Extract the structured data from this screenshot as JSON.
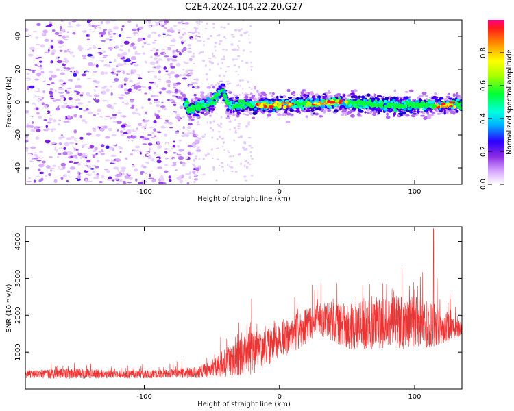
{
  "title": "C2E4.2024.104.22.20.G27",
  "chart_data": [
    {
      "type": "heatmap",
      "xlabel": "Height of straight line (km)",
      "ylabel": "Frequency (Hz)",
      "xlim": [
        -188,
        135
      ],
      "ylim": [
        -50,
        50
      ],
      "x_ticks": [
        -100,
        0,
        100
      ],
      "x_tick_labels": [
        "-100",
        "0",
        "100"
      ],
      "y_ticks": [
        -40,
        -20,
        0,
        20,
        40
      ],
      "y_tick_labels": [
        "-40",
        "-20",
        "0",
        "20",
        "40"
      ],
      "colorbar": {
        "label": "Normalized spectral amplitude",
        "range": [
          0,
          1
        ],
        "ticks": [
          0.0,
          0.2,
          0.4,
          0.6,
          0.8
        ],
        "tick_labels": [
          "0.0",
          "0.2",
          "0.4",
          "0.6",
          "0.8"
        ]
      },
      "description_points": {
        "noise_region_x": [
          -188,
          -65
        ],
        "signal_track": [
          {
            "x": -68,
            "f": -5
          },
          {
            "x": -50,
            "f": 0
          },
          {
            "x": -42,
            "f": 8
          },
          {
            "x": -38,
            "f": -2
          },
          {
            "x": 0,
            "f": -2
          },
          {
            "x": 40,
            "f": 0
          },
          {
            "x": 80,
            "f": -2
          },
          {
            "x": 120,
            "f": -2
          },
          {
            "x": 135,
            "f": -1
          }
        ]
      },
      "grid": false
    },
    {
      "type": "line",
      "xlabel": "Height of straight line (km)",
      "ylabel": "SNR (10 * v/v)",
      "xlim": [
        -188,
        135
      ],
      "ylim": [
        0,
        4400
      ],
      "x_ticks": [
        -100,
        0,
        100
      ],
      "x_tick_labels": [
        "-100",
        "0",
        "100"
      ],
      "y_ticks": [
        1000,
        2000,
        3000,
        4000
      ],
      "y_tick_labels": [
        "1000",
        "2000",
        "3000",
        "4000"
      ],
      "series": [
        {
          "color": "#ee3333",
          "envelope_x": [
            -188,
            -160,
            -140,
            -120,
            -100,
            -80,
            -60,
            -50,
            -40,
            -30,
            -20,
            -10,
            0,
            10,
            20,
            30,
            40,
            50,
            60,
            70,
            80,
            90,
            100,
            110,
            120,
            130,
            135
          ],
          "baseline": [
            400,
            420,
            420,
            400,
            400,
            420,
            450,
            550,
            700,
            850,
            1000,
            1100,
            1300,
            1500,
            1700,
            1900,
            1800,
            1700,
            1700,
            1750,
            1750,
            1800,
            1800,
            1750,
            1700,
            1650,
            1650
          ],
          "amplitude": [
            200,
            250,
            250,
            200,
            200,
            220,
            300,
            450,
            700,
            900,
            1100,
            900,
            900,
            900,
            900,
            800,
            1000,
            1100,
            1200,
            1200,
            1300,
            1300,
            1300,
            1300,
            900,
            500,
            400
          ]
        }
      ],
      "peak": {
        "x": 114,
        "y": 4350
      },
      "grid": false
    }
  ]
}
